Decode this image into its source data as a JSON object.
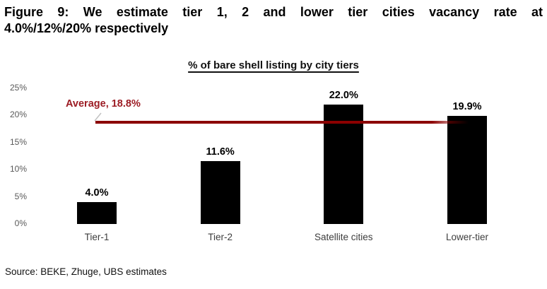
{
  "header": {
    "title_line1": "Figure 9: We estimate tier 1, 2 and lower tier cities vacancy rate at",
    "title_line2": "4.0%/12%/20% respectively"
  },
  "chart_data": {
    "type": "bar",
    "title": "% of bare shell listing by city tiers",
    "categories": [
      "Tier-1",
      "Tier-2",
      "Satellite cities",
      "Lower-tier"
    ],
    "values": [
      4.0,
      11.6,
      22.0,
      19.9
    ],
    "value_labels": [
      "4.0%",
      "11.6%",
      "22.0%",
      "19.9%"
    ],
    "average": 18.8,
    "average_label": "Average, 18.8%",
    "y_ticks": {
      "values": [
        0,
        5,
        10,
        15,
        20,
        25
      ],
      "labels": [
        "0%",
        "5%",
        "10%",
        "15%",
        "20%",
        "25%"
      ]
    },
    "ylim": [
      0,
      25
    ],
    "grid": false,
    "legend": false,
    "bar_color": "#000000",
    "average_line_color": "#8B0000",
    "average_text_color": "#9C1C24",
    "axis_label_color": "#595959"
  },
  "footer": {
    "source": "Source: BEKE, Zhuge, UBS estimates"
  }
}
